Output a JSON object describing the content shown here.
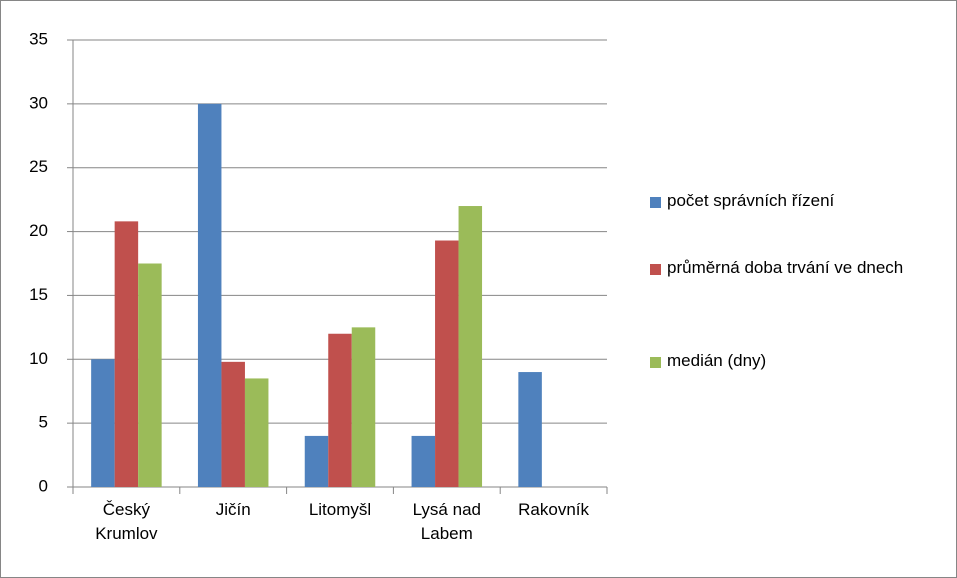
{
  "chart_data": {
    "type": "bar",
    "categories": [
      "Český Krumlov",
      "Jičín",
      "Litomyšl",
      "Lysá nad Labem",
      "Rakovník"
    ],
    "series": [
      {
        "name": "počet správních řízení",
        "color": "#4f81bd",
        "values": [
          10,
          30,
          4,
          4,
          9
        ]
      },
      {
        "name": "průměrná doba trvání ve dnech",
        "color": "#c0504d",
        "values": [
          20.8,
          9.8,
          12,
          19.3,
          null
        ]
      },
      {
        "name": "medián (dny)",
        "color": "#9bbb59",
        "values": [
          17.5,
          8.5,
          12.5,
          22,
          null
        ]
      }
    ],
    "ylim": [
      0,
      35
    ],
    "yticks": [
      0,
      5,
      10,
      15,
      20,
      25,
      30,
      35
    ],
    "grid": true,
    "legend": "right"
  }
}
